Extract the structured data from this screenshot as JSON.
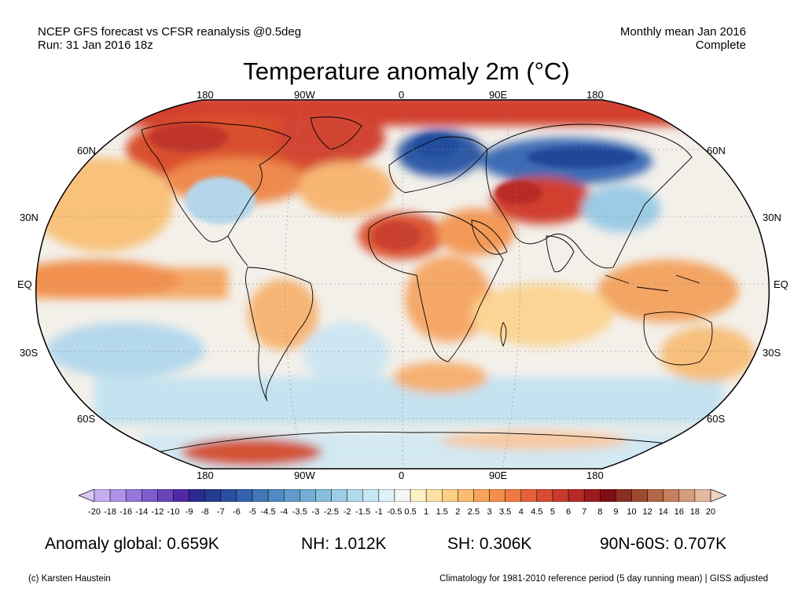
{
  "header": {
    "line1": "NCEP GFS forecast vs CFSR reanalysis @0.5deg",
    "line2": "Run: 31 Jan 2016 18z",
    "right1": "Monthly mean Jan 2016",
    "right2": "Complete"
  },
  "title": "Temperature anomaly 2m (°C)",
  "map": {
    "projection": "Robinson",
    "lon_labels_top": [
      "180",
      "90W",
      "0",
      "90E",
      "180"
    ],
    "lon_labels_bottom": [
      "180",
      "90W",
      "0",
      "90E",
      "180"
    ],
    "lat_labels_left": [
      "60N",
      "30N",
      "EQ",
      "30S",
      "60S"
    ],
    "lat_labels_right": [
      "60N",
      "30N",
      "EQ",
      "30S",
      "60S"
    ],
    "ocean_color": "#f0f0f0"
  },
  "colorbar": {
    "ticks": [
      "-20",
      "-18",
      "-16",
      "-14",
      "-12",
      "-10",
      "-9",
      "-8",
      "-7",
      "-6",
      "-5",
      "-4.5",
      "-4",
      "-3.5",
      "-3",
      "-2.5",
      "-2",
      "-1.5",
      "-1",
      "-0.5",
      "0.5",
      "1",
      "1.5",
      "2",
      "2.5",
      "3",
      "3.5",
      "4",
      "4.5",
      "5",
      "6",
      "7",
      "8",
      "9",
      "10",
      "12",
      "14",
      "16",
      "18",
      "20"
    ],
    "colors": [
      "#d8c8f4",
      "#c4aef0",
      "#ad92e6",
      "#9676da",
      "#7e5ccd",
      "#6844bb",
      "#4f2aa4",
      "#2a2a90",
      "#233b91",
      "#2a4fa0",
      "#3363ae",
      "#4277b8",
      "#5189c2",
      "#629bcb",
      "#74add4",
      "#88bedd",
      "#9dcde6",
      "#b1dbec",
      "#c7e7f3",
      "#ddf1f8",
      "#f5f5f5",
      "#fdf1c4",
      "#fde3a3",
      "#fdd085",
      "#fcbc70",
      "#f9a45b",
      "#f58e4c",
      "#ef7843",
      "#e5613a",
      "#d94b32",
      "#c93a2c",
      "#b52a24",
      "#9d1b1e",
      "#7e0d14",
      "#8a2f22",
      "#9e4a30",
      "#b26644",
      "#c4805c",
      "#d49d7e",
      "#e4b9a0",
      "#f0d2c0"
    ]
  },
  "stats": {
    "global": "Anomaly global: 0.659K",
    "nh": "NH: 1.012K",
    "sh": "SH: 0.306K",
    "arctic": "90N-60S: 0.707K"
  },
  "footer": {
    "left": "(c) Karsten Haustein",
    "right": "Climatology for 1981-2010 reference period (5 day running mean) | GISS adjusted"
  }
}
